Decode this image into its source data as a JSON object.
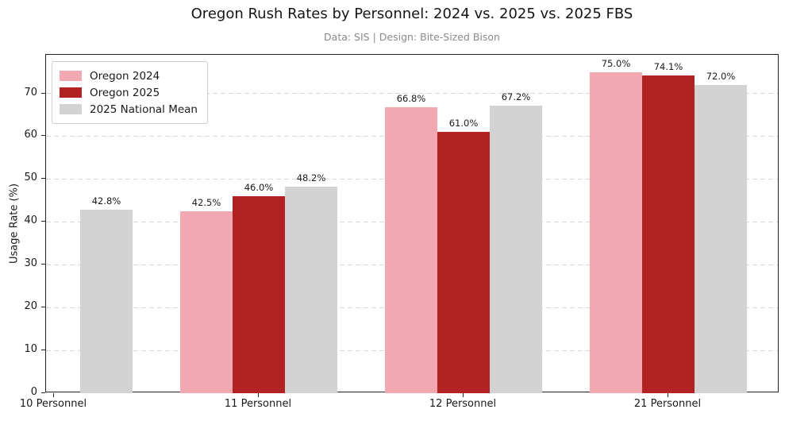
{
  "chart_data": {
    "type": "bar",
    "title": "Oregon Rush Rates by Personnel: 2024 vs. 2025 vs. 2025 FBS",
    "subtitle": "Data: SIS | Design: Bite-Sized Bison",
    "xlabel": "",
    "ylabel": "Usage Rate (%)",
    "categories": [
      "10 Personnel",
      "11 Personnel",
      "12 Personnel",
      "21 Personnel"
    ],
    "series": [
      {
        "name": "Oregon 2024",
        "color": "#F2A8B1",
        "values": [
          null,
          42.5,
          66.8,
          75.0
        ]
      },
      {
        "name": "Oregon 2025",
        "color": "#B22222",
        "values": [
          null,
          46.0,
          61.0,
          74.1
        ]
      },
      {
        "name": "2025 National Mean",
        "color": "#D3D3D3",
        "values": [
          42.8,
          48.2,
          67.2,
          72.0
        ]
      }
    ],
    "value_label_format": "{value:.1f}%",
    "yticks": [
      0,
      10,
      20,
      30,
      40,
      50,
      60,
      70
    ],
    "ylim": [
      0,
      79
    ],
    "grid": "horizontal-dashed",
    "gridline_color": "#d8d8d8",
    "legend_position": "upper-left",
    "text_color": "#1a1a1a",
    "subtitle_color": "#8a8a8a"
  }
}
